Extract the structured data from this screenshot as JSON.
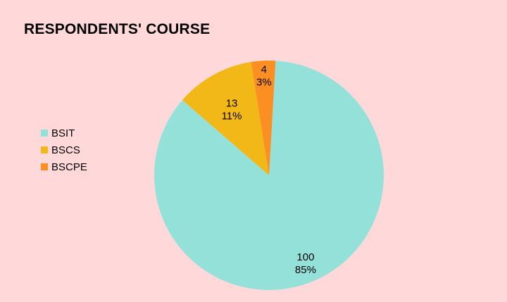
{
  "chart_data": {
    "type": "pie",
    "title": "RESPONDENTS' COURSE",
    "categories": [
      "BSIT",
      "BSCS",
      "BSCPE"
    ],
    "values": [
      100,
      13,
      4
    ],
    "percent_labels": [
      "85%",
      "11%",
      "3%"
    ],
    "colors": [
      "#94e1da",
      "#f2b817",
      "#fb8f22"
    ],
    "legend_position": "left",
    "start_angle_deg": 3.3,
    "direction": "clockwise"
  }
}
